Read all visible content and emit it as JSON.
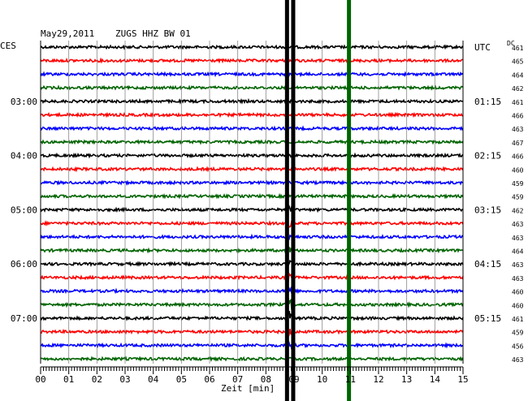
{
  "header": {
    "date": "May29,2011",
    "station": "ZUGS HHZ BW 01",
    "left_tz": "CES",
    "right_tz": "UTC",
    "dc_label": "DC"
  },
  "chart_data": {
    "type": "line",
    "title": "May29,2011   ZUGS HHZ BW 01",
    "xlabel": "Zeit [min]",
    "xlim": [
      0,
      15
    ],
    "x_ticks": [
      "00",
      "01",
      "02",
      "03",
      "04",
      "05",
      "06",
      "07",
      "08",
      "09",
      "10",
      "11",
      "12",
      "13",
      "14",
      "15"
    ],
    "trace_colors": [
      "#000000",
      "#ff0000",
      "#0000ff",
      "#006400"
    ],
    "left_time_labels": [
      {
        "trace": 4,
        "label": "03:00"
      },
      {
        "trace": 8,
        "label": "04:00"
      },
      {
        "trace": 12,
        "label": "05:00"
      },
      {
        "trace": 16,
        "label": "06:00"
      },
      {
        "trace": 20,
        "label": "07:00"
      }
    ],
    "right_time_labels": [
      {
        "trace": 0,
        "label": "UTC"
      },
      {
        "trace": 4,
        "label": "01:15"
      },
      {
        "trace": 8,
        "label": "02:15"
      },
      {
        "trace": 12,
        "label": "03:15"
      },
      {
        "trace": 16,
        "label": "04:15"
      },
      {
        "trace": 20,
        "label": "05:15"
      }
    ],
    "dc_offsets": [
      "461",
      "465",
      "464",
      "462",
      "461",
      "466",
      "463",
      "467",
      "466",
      "460",
      "459",
      "459",
      "462",
      "463",
      "463",
      "464",
      "463",
      "463",
      "460",
      "460",
      "461",
      "459",
      "456",
      "463"
    ],
    "event_markers": [
      {
        "x": 8.75,
        "color": "#000000"
      },
      {
        "x": 8.97,
        "color": "#000000"
      },
      {
        "x": 10.95,
        "color": "#006400"
      }
    ],
    "event": {
      "x": 8.85,
      "trace_start": 12,
      "trace_end": 22
    }
  }
}
